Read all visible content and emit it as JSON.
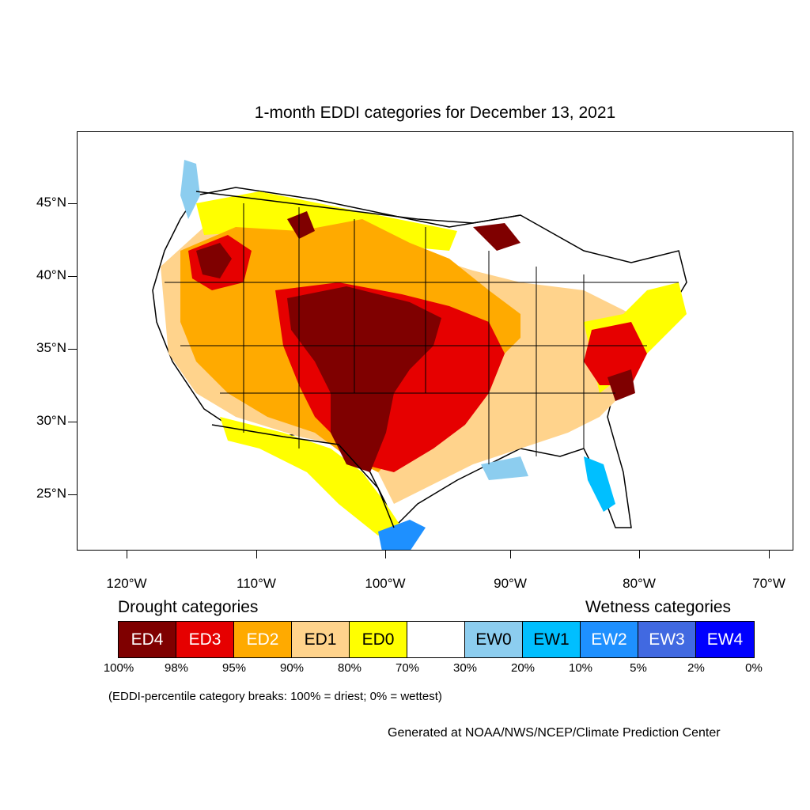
{
  "title": "1-month EDDI categories for December 13, 2021",
  "map": {
    "lat_labels": [
      "45°N",
      "40°N",
      "35°N",
      "30°N",
      "25°N"
    ],
    "lon_labels": [
      "120°W",
      "110°W",
      "100°W",
      "90°W",
      "80°W",
      "70°W"
    ]
  },
  "legend": {
    "drought_heading": "Drought categories",
    "wetness_heading": "Wetness categories",
    "categories": [
      {
        "label": "ED4",
        "color": "#7f0000",
        "text_color": "#ffffff"
      },
      {
        "label": "ED3",
        "color": "#e60000",
        "text_color": "#ffffff"
      },
      {
        "label": "ED2",
        "color": "#ffaa00",
        "text_color": "#ffffff"
      },
      {
        "label": "ED1",
        "color": "#ffd38c",
        "text_color": "#000000"
      },
      {
        "label": "ED0",
        "color": "#ffff00",
        "text_color": "#000000"
      },
      {
        "label": "",
        "color": "#ffffff",
        "text_color": "#000000"
      },
      {
        "label": "EW0",
        "color": "#8ccdef",
        "text_color": "#000000"
      },
      {
        "label": "EW1",
        "color": "#00bfff",
        "text_color": "#000000"
      },
      {
        "label": "EW2",
        "color": "#1e90ff",
        "text_color": "#ffffff"
      },
      {
        "label": "EW3",
        "color": "#4169e1",
        "text_color": "#ffffff"
      },
      {
        "label": "EW4",
        "color": "#0000ff",
        "text_color": "#ffffff"
      }
    ],
    "percentiles": [
      "100%",
      "98%",
      "95%",
      "90%",
      "80%",
      "70%",
      "30%",
      "20%",
      "10%",
      "5%",
      "2%",
      "0%"
    ]
  },
  "note": "(EDDI-percentile category breaks: 100% = driest; 0% = wettest)",
  "credit": "Generated at NOAA/NWS/NCEP/Climate Prediction Center"
}
